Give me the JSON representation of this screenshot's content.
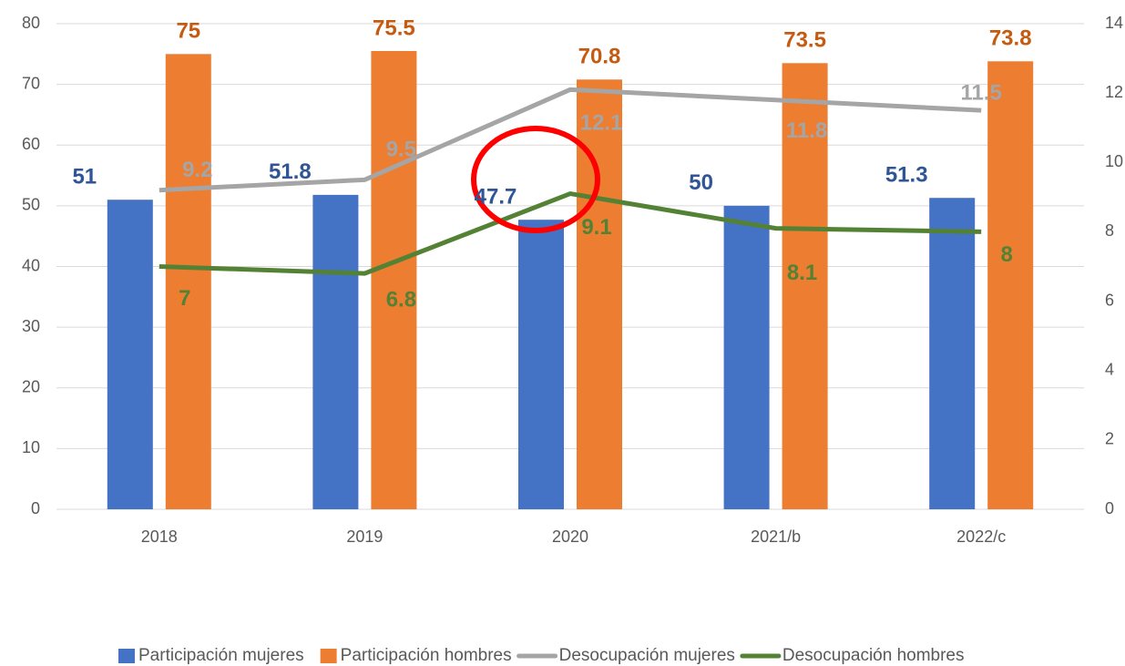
{
  "chart_data": {
    "type": "bar",
    "categories": [
      "2018",
      "2019",
      "2020",
      "2021/b",
      "2022/c"
    ],
    "series": [
      {
        "name": "Participación mujeres",
        "type": "bar",
        "color": "#4472c4",
        "label_color": "#2f5597",
        "values": [
          51,
          51.8,
          47.7,
          50,
          51.3
        ]
      },
      {
        "name": "Participación hombres",
        "type": "bar",
        "color": "#ed7d31",
        "label_color": "#c55a11",
        "values": [
          75,
          75.5,
          70.8,
          73.5,
          73.8
        ]
      },
      {
        "name": "Desocupación mujeres",
        "type": "line",
        "axis": "y2",
        "color": "#a5a5a5",
        "label_color": "#a5a5a5",
        "values": [
          9.2,
          9.5,
          12.1,
          11.8,
          11.5
        ]
      },
      {
        "name": "Desocupación hombres",
        "type": "line",
        "axis": "y2",
        "color": "#548235",
        "label_color": "#548235",
        "values": [
          7,
          6.8,
          9.1,
          8.1,
          8
        ]
      }
    ],
    "ylim": [
      0,
      80
    ],
    "yticks": [
      0,
      10,
      20,
      30,
      40,
      50,
      60,
      70,
      80
    ],
    "y2lim": [
      0,
      14
    ],
    "y2ticks": [
      0,
      2,
      4,
      6,
      8,
      10,
      12,
      14
    ],
    "grid": true,
    "legend": "bottom"
  }
}
